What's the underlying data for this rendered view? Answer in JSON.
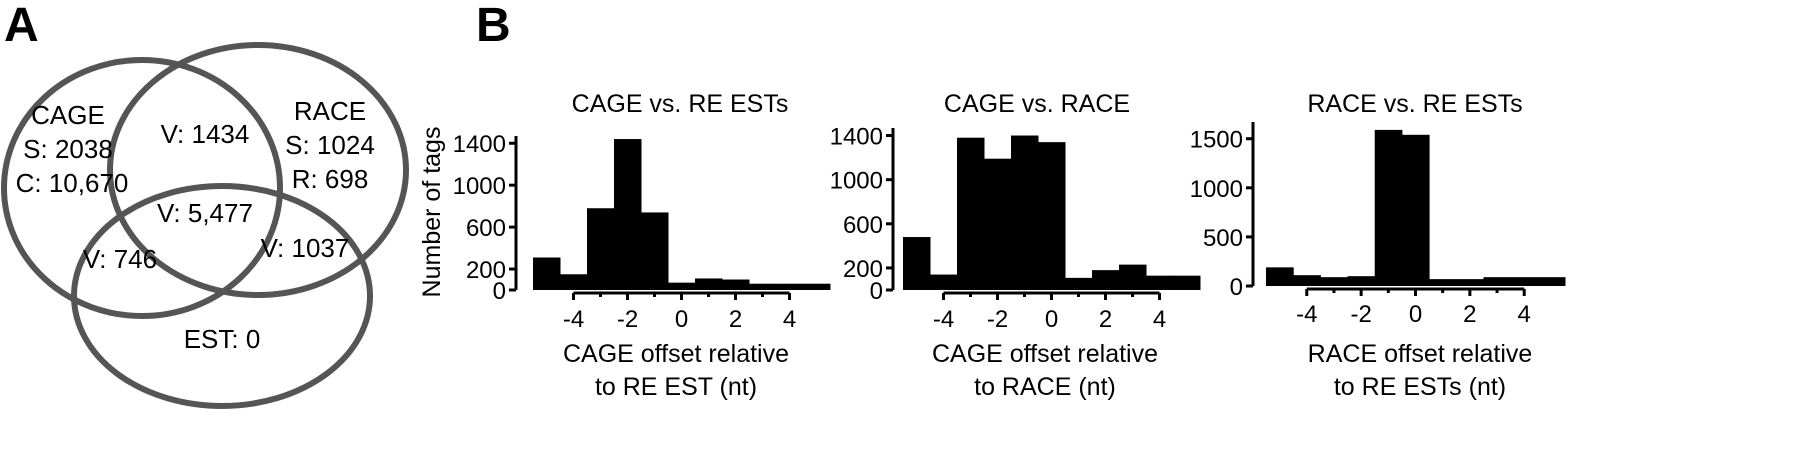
{
  "panel_a": {
    "letter": "A",
    "sets": [
      {
        "name": "CAGE",
        "lines": [
          "CAGE",
          "S: 2038",
          "C: 10,670"
        ]
      },
      {
        "name": "RACE",
        "lines": [
          "RACE",
          "S: 1024",
          "R: 698"
        ]
      },
      {
        "name": "EST",
        "lines": [
          "EST: 0"
        ]
      }
    ],
    "overlaps": {
      "cage_race": "V: 1434",
      "all_three": "V: 5,477",
      "cage_est": "V: 746",
      "race_est": "V: 1037"
    },
    "colors": {
      "circle_stroke": "#555555"
    }
  },
  "panel_b": {
    "letter": "B",
    "ylabel": "Number of tags",
    "bar_color": "#000000"
  },
  "chart_data": [
    {
      "type": "bar",
      "title": "CAGE vs. RE ESTs",
      "xlabel": [
        "CAGE offset relative",
        "to RE EST (nt)"
      ],
      "ylabel": "Number of tags",
      "x": [
        -5,
        -4,
        -3,
        -2,
        -1,
        0,
        1,
        2,
        3,
        4,
        5
      ],
      "values": [
        310,
        150,
        780,
        1440,
        740,
        70,
        110,
        100,
        60,
        60,
        60
      ],
      "xticks": [
        -4,
        -2,
        0,
        2,
        4
      ],
      "yticks": [
        0,
        200,
        600,
        1000,
        1400
      ],
      "ylim": [
        0,
        1450
      ],
      "xlim": [
        -5.5,
        5.5
      ]
    },
    {
      "type": "bar",
      "title": "CAGE vs. RACE",
      "xlabel": [
        "CAGE offset relative",
        "to RACE (nt)"
      ],
      "ylabel": "",
      "x": [
        -5,
        -4,
        -3,
        -2,
        -1,
        0,
        1,
        2,
        3,
        4,
        5
      ],
      "values": [
        480,
        140,
        1380,
        1190,
        1400,
        1340,
        110,
        180,
        230,
        130,
        130
      ],
      "xticks": [
        -4,
        -2,
        0,
        2,
        4
      ],
      "yticks": [
        0,
        200,
        600,
        1000,
        1400
      ],
      "ylim": [
        0,
        1450
      ],
      "xlim": [
        -5.5,
        5.5
      ]
    },
    {
      "type": "bar",
      "title": "RACE vs. RE ESTs",
      "xlabel": [
        "RACE offset relative",
        "to RE ESTs (nt)"
      ],
      "ylabel": "",
      "x": [
        -5,
        -4,
        -3,
        -2,
        -1,
        0,
        1,
        2,
        3,
        4,
        5
      ],
      "values": [
        190,
        110,
        90,
        100,
        1590,
        1540,
        70,
        70,
        90,
        90,
        90
      ],
      "xticks": [
        -4,
        -2,
        0,
        2,
        4
      ],
      "yticks": [
        0,
        500,
        1000,
        1500
      ],
      "ylim": [
        0,
        1650
      ],
      "xlim": [
        -5.5,
        5.5
      ]
    }
  ]
}
